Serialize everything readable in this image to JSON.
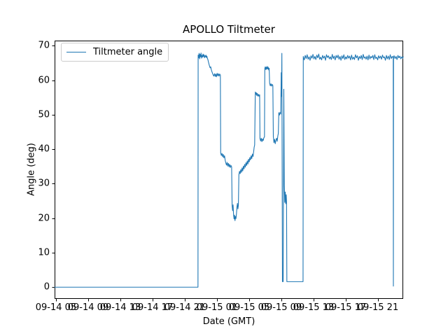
{
  "figure": {
    "background": "#ffffff"
  },
  "legend": {
    "label": "Tiltmeter angle"
  },
  "chart_data": {
    "type": "line",
    "title": "APOLLO Tiltmeter",
    "xlabel": "Date (GMT)",
    "ylabel": "Angle (deg)",
    "legend": [
      "Tiltmeter angle"
    ],
    "legend_position": "upper left",
    "grid": false,
    "line_color": "#1f77b4",
    "axis_color": "#000000",
    "x_encoding": "hours after 09-14 00:00 GMT",
    "xlim": [
      4.83,
      48.13
    ],
    "ylim": [
      -3.4,
      71.5
    ],
    "yticks": [
      0,
      10,
      20,
      30,
      40,
      50,
      60,
      70
    ],
    "xtick_hours": [
      5,
      9,
      13,
      17,
      21,
      25,
      29,
      33,
      37,
      41,
      45
    ],
    "xtick_labels": [
      "09-14 05",
      "09-14 09",
      "09-14 13",
      "09-14 17",
      "09-14 21",
      "09-15 01",
      "09-15 05",
      "09-15 09",
      "09-15 13",
      "09-15 17",
      "09-15 21"
    ],
    "points": [
      [
        4.83,
        0
      ],
      [
        10.0,
        0
      ],
      [
        16.0,
        0
      ],
      [
        22.64,
        0
      ],
      [
        22.66,
        67.3
      ],
      [
        22.72,
        66.5
      ],
      [
        22.78,
        67.8
      ],
      [
        22.84,
        66.2
      ],
      [
        22.9,
        67.5
      ],
      [
        22.96,
        66.8
      ],
      [
        23.02,
        67.9
      ],
      [
        23.08,
        66.4
      ],
      [
        23.14,
        67.2
      ],
      [
        23.2,
        66.7
      ],
      [
        23.26,
        67.6
      ],
      [
        23.32,
        66.9
      ],
      [
        23.38,
        67.4
      ],
      [
        23.44,
        66.5
      ],
      [
        23.5,
        67.1
      ],
      [
        23.56,
        66.8
      ],
      [
        23.62,
        67.3
      ],
      [
        23.68,
        66.6
      ],
      [
        23.74,
        67.0
      ],
      [
        23.8,
        66.4
      ],
      [
        23.87,
        66.0
      ],
      [
        23.95,
        65.2
      ],
      [
        24.05,
        64.3
      ],
      [
        24.15,
        63.6
      ],
      [
        24.22,
        63.9
      ],
      [
        24.3,
        63.0
      ],
      [
        24.4,
        62.3
      ],
      [
        24.5,
        61.7
      ],
      [
        24.6,
        61.2
      ],
      [
        24.7,
        61.9
      ],
      [
        24.78,
        61.1
      ],
      [
        24.86,
        61.8
      ],
      [
        24.94,
        61.0
      ],
      [
        25.02,
        62.0
      ],
      [
        25.1,
        61.3
      ],
      [
        25.18,
        61.9
      ],
      [
        25.26,
        61.2
      ],
      [
        25.34,
        61.8
      ],
      [
        25.42,
        61.5
      ],
      [
        25.46,
        38.9
      ],
      [
        25.54,
        38.2
      ],
      [
        25.62,
        38.8
      ],
      [
        25.7,
        37.8
      ],
      [
        25.78,
        38.5
      ],
      [
        25.86,
        37.5
      ],
      [
        25.94,
        38.1
      ],
      [
        26.02,
        36.8
      ],
      [
        26.1,
        36.0
      ],
      [
        26.18,
        35.4
      ],
      [
        26.26,
        36.2
      ],
      [
        26.34,
        35.1
      ],
      [
        26.42,
        35.9
      ],
      [
        26.5,
        34.9
      ],
      [
        26.58,
        35.6
      ],
      [
        26.66,
        34.7
      ],
      [
        26.74,
        35.3
      ],
      [
        26.82,
        34.9
      ],
      [
        26.88,
        23.6
      ],
      [
        26.94,
        22.2
      ],
      [
        27.0,
        23.9
      ],
      [
        27.06,
        21.0
      ],
      [
        27.12,
        19.8
      ],
      [
        27.18,
        20.9
      ],
      [
        27.24,
        19.3
      ],
      [
        27.3,
        20.5
      ],
      [
        27.36,
        19.9
      ],
      [
        27.42,
        21.3
      ],
      [
        27.48,
        23.2
      ],
      [
        27.54,
        24.3
      ],
      [
        27.6,
        22.7
      ],
      [
        27.66,
        23.8
      ],
      [
        27.72,
        32.6
      ],
      [
        27.8,
        33.6
      ],
      [
        27.88,
        32.9
      ],
      [
        27.96,
        34.1
      ],
      [
        28.04,
        33.3
      ],
      [
        28.12,
        34.6
      ],
      [
        28.2,
        33.7
      ],
      [
        28.28,
        35.1
      ],
      [
        28.36,
        34.3
      ],
      [
        28.44,
        35.6
      ],
      [
        28.52,
        34.8
      ],
      [
        28.6,
        36.1
      ],
      [
        28.68,
        35.3
      ],
      [
        28.76,
        36.6
      ],
      [
        28.84,
        35.7
      ],
      [
        28.92,
        37.1
      ],
      [
        29.0,
        36.3
      ],
      [
        29.08,
        37.6
      ],
      [
        29.16,
        36.9
      ],
      [
        29.24,
        38.1
      ],
      [
        29.32,
        37.3
      ],
      [
        29.4,
        38.6
      ],
      [
        29.48,
        37.9
      ],
      [
        29.56,
        39.4
      ],
      [
        29.62,
        40.6
      ],
      [
        29.68,
        41.2
      ],
      [
        29.76,
        56.6
      ],
      [
        29.82,
        55.9
      ],
      [
        29.88,
        56.4
      ],
      [
        29.94,
        55.6
      ],
      [
        30.0,
        56.2
      ],
      [
        30.08,
        55.4
      ],
      [
        30.16,
        55.9
      ],
      [
        30.24,
        55.3
      ],
      [
        30.3,
        55.8
      ],
      [
        30.34,
        43.1
      ],
      [
        30.42,
        42.4
      ],
      [
        30.5,
        43.2
      ],
      [
        30.58,
        42.2
      ],
      [
        30.66,
        43.0
      ],
      [
        30.74,
        42.5
      ],
      [
        30.82,
        43.3
      ],
      [
        30.9,
        43.6
      ],
      [
        30.94,
        63.4
      ],
      [
        31.0,
        63.9
      ],
      [
        31.06,
        63.1
      ],
      [
        31.12,
        63.8
      ],
      [
        31.18,
        63.2
      ],
      [
        31.24,
        64.0
      ],
      [
        31.3,
        63.3
      ],
      [
        31.36,
        63.8
      ],
      [
        31.42,
        63.0
      ],
      [
        31.48,
        63.5
      ],
      [
        31.54,
        59.1
      ],
      [
        31.62,
        58.4
      ],
      [
        31.7,
        59.0
      ],
      [
        31.78,
        58.3
      ],
      [
        31.86,
        58.8
      ],
      [
        31.94,
        58.5
      ],
      [
        32.0,
        43.6
      ],
      [
        32.08,
        41.9
      ],
      [
        32.16,
        42.9
      ],
      [
        32.24,
        41.6
      ],
      [
        32.32,
        42.6
      ],
      [
        32.4,
        43.2
      ],
      [
        32.48,
        42.3
      ],
      [
        32.56,
        43.9
      ],
      [
        32.62,
        44.6
      ],
      [
        32.68,
        50.6
      ],
      [
        32.76,
        49.9
      ],
      [
        32.84,
        50.7
      ],
      [
        32.92,
        50.2
      ],
      [
        32.98,
        62.2
      ],
      [
        33.02,
        55.3
      ],
      [
        33.06,
        67.8
      ],
      [
        33.1,
        30.0
      ],
      [
        33.13,
        1.6
      ],
      [
        33.22,
        1.6
      ],
      [
        33.3,
        57.4
      ],
      [
        33.36,
        29.5
      ],
      [
        33.42,
        24.6
      ],
      [
        33.48,
        27.6
      ],
      [
        33.54,
        24.2
      ],
      [
        33.6,
        26.8
      ],
      [
        33.64,
        24.8
      ],
      [
        33.68,
        1.6
      ],
      [
        33.8,
        1.6
      ],
      [
        34.2,
        1.6
      ],
      [
        34.8,
        1.6
      ],
      [
        35.4,
        1.6
      ],
      [
        35.69,
        1.6
      ],
      [
        35.72,
        66.9
      ],
      [
        35.84,
        65.9
      ],
      [
        35.96,
        67.2
      ],
      [
        36.08,
        66.3
      ],
      [
        36.2,
        67.4
      ],
      [
        36.32,
        66.1
      ],
      [
        36.44,
        66.8
      ],
      [
        36.56,
        65.8
      ],
      [
        36.68,
        67.1
      ],
      [
        36.8,
        66.4
      ],
      [
        36.92,
        67.5
      ],
      [
        37.04,
        66.2
      ],
      [
        37.16,
        66.9
      ],
      [
        37.28,
        66.0
      ],
      [
        37.4,
        67.3
      ],
      [
        37.52,
        66.5
      ],
      [
        37.64,
        67.6
      ],
      [
        37.76,
        66.1
      ],
      [
        37.88,
        66.7
      ],
      [
        38.0,
        65.9
      ],
      [
        38.12,
        67.2
      ],
      [
        38.24,
        66.4
      ],
      [
        38.36,
        67.0
      ],
      [
        38.48,
        65.8
      ],
      [
        38.6,
        67.4
      ],
      [
        38.72,
        66.6
      ],
      [
        38.84,
        67.1
      ],
      [
        38.96,
        66.2
      ],
      [
        39.08,
        66.8
      ],
      [
        39.2,
        66.0
      ],
      [
        39.32,
        67.5
      ],
      [
        39.44,
        66.3
      ],
      [
        39.56,
        67.0
      ],
      [
        39.68,
        65.9
      ],
      [
        39.8,
        67.2
      ],
      [
        39.92,
        66.5
      ],
      [
        40.04,
        67.3
      ],
      [
        40.16,
        66.1
      ],
      [
        40.28,
        66.9
      ],
      [
        40.4,
        65.8
      ],
      [
        40.52,
        67.1
      ],
      [
        40.64,
        66.3
      ],
      [
        40.76,
        67.4
      ],
      [
        40.88,
        66.0
      ],
      [
        41.0,
        66.8
      ],
      [
        41.12,
        66.2
      ],
      [
        41.24,
        67.2
      ],
      [
        41.36,
        66.4
      ],
      [
        41.48,
        67.0
      ],
      [
        41.6,
        65.9
      ],
      [
        41.72,
        67.3
      ],
      [
        41.84,
        66.1
      ],
      [
        41.96,
        66.7
      ],
      [
        42.08,
        66.0
      ],
      [
        42.2,
        67.4
      ],
      [
        42.32,
        66.5
      ],
      [
        42.44,
        67.1
      ],
      [
        42.56,
        65.8
      ],
      [
        42.68,
        66.9
      ],
      [
        42.8,
        66.3
      ],
      [
        42.92,
        67.2
      ],
      [
        43.04,
        66.0
      ],
      [
        43.16,
        67.5
      ],
      [
        43.28,
        66.4
      ],
      [
        43.4,
        66.8
      ],
      [
        43.52,
        66.1
      ],
      [
        43.64,
        67.0
      ],
      [
        43.76,
        65.9
      ],
      [
        43.88,
        67.3
      ],
      [
        44.0,
        66.2
      ],
      [
        44.12,
        66.9
      ],
      [
        44.24,
        66.5
      ],
      [
        44.36,
        67.2
      ],
      [
        44.48,
        66.0
      ],
      [
        44.6,
        67.4
      ],
      [
        44.72,
        66.3
      ],
      [
        44.84,
        66.7
      ],
      [
        44.96,
        65.9
      ],
      [
        45.08,
        67.1
      ],
      [
        45.2,
        66.4
      ],
      [
        45.32,
        67.0
      ],
      [
        45.44,
        66.1
      ],
      [
        45.56,
        67.3
      ],
      [
        45.68,
        66.5
      ],
      [
        45.8,
        66.8
      ],
      [
        45.92,
        65.8
      ],
      [
        46.04,
        67.2
      ],
      [
        46.16,
        66.2
      ],
      [
        46.28,
        67.0
      ],
      [
        46.4,
        66.0
      ],
      [
        46.52,
        67.4
      ],
      [
        46.64,
        66.3
      ],
      [
        46.76,
        66.9
      ],
      [
        46.85,
        66.6
      ],
      [
        46.89,
        66.8
      ],
      [
        46.91,
        0.3
      ],
      [
        46.93,
        66.9
      ],
      [
        47.0,
        67.1
      ],
      [
        47.12,
        66.3
      ],
      [
        47.24,
        66.9
      ],
      [
        47.36,
        66.0
      ],
      [
        47.48,
        67.2
      ],
      [
        47.6,
        66.5
      ],
      [
        47.72,
        67.0
      ],
      [
        47.84,
        66.2
      ],
      [
        47.96,
        66.8
      ],
      [
        48.08,
        66.4
      ],
      [
        48.13,
        66.8
      ]
    ]
  }
}
